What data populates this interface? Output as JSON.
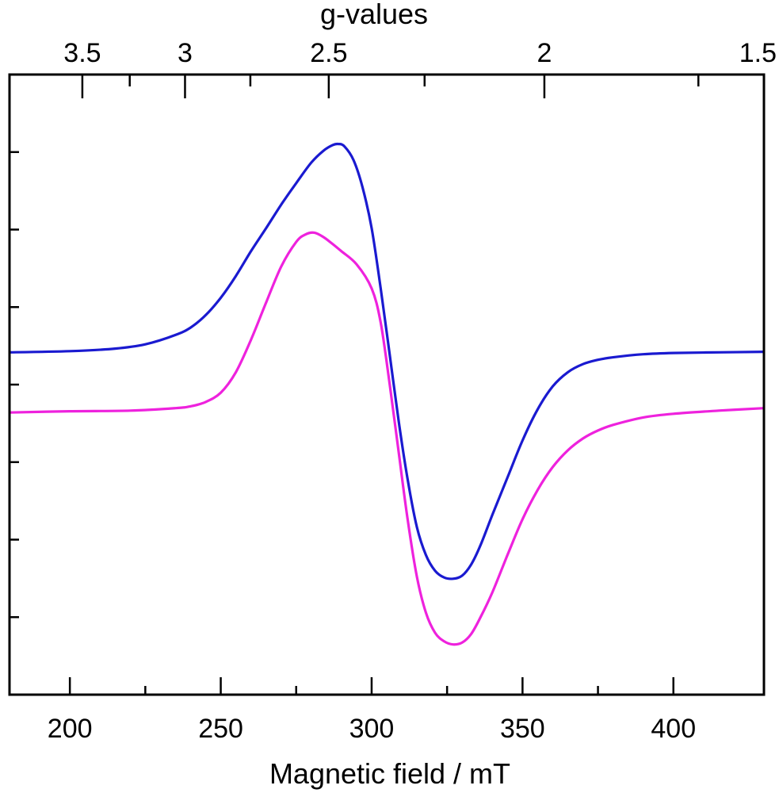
{
  "chart_data": {
    "type": "line",
    "xlabel": "Magnetic field / mT",
    "top_xlabel": "g-values",
    "xlim": [
      180,
      430
    ],
    "ylim": [
      0,
      1
    ],
    "y_ticks_labeled": false,
    "bottom_ticks": [
      "200",
      "250",
      "300",
      "350",
      "400"
    ],
    "bottom_tick_values": [
      200,
      250,
      300,
      350,
      400
    ],
    "bottom_minor_ticks": [
      225,
      275,
      325,
      375
    ],
    "top_ticks": [
      "3.5",
      "3",
      "2.5",
      "2",
      "1.5"
    ],
    "top_tick_values": [
      3.5,
      3.0,
      2.5,
      2.0,
      1.5
    ],
    "top_minor_ticks": [
      3.25,
      2.75,
      2.25,
      1.75
    ],
    "g_conversion_constant": 714.48,
    "n_y_ticks": 8,
    "series": [
      {
        "name": "blue",
        "color": "#1a1ad0",
        "x": [
          180,
          200,
          215,
          225,
          235,
          240,
          245,
          250,
          255,
          260,
          265,
          270,
          275,
          280,
          284,
          287,
          289,
          291,
          294,
          297,
          300,
          303,
          306,
          309,
          312,
          315,
          318,
          321,
          324,
          327,
          330,
          333,
          336,
          340,
          345,
          350,
          355,
          360,
          365,
          370,
          375,
          380,
          390,
          400,
          415,
          430
        ],
        "values": [
          0.552,
          0.554,
          0.558,
          0.565,
          0.58,
          0.592,
          0.612,
          0.64,
          0.675,
          0.715,
          0.752,
          0.79,
          0.825,
          0.858,
          0.877,
          0.886,
          0.888,
          0.884,
          0.862,
          0.818,
          0.752,
          0.655,
          0.548,
          0.44,
          0.345,
          0.27,
          0.225,
          0.2,
          0.189,
          0.187,
          0.192,
          0.21,
          0.24,
          0.29,
          0.35,
          0.41,
          0.46,
          0.497,
          0.52,
          0.533,
          0.54,
          0.544,
          0.549,
          0.551,
          0.552,
          0.553
        ]
      },
      {
        "name": "magenta",
        "color": "#ee22dd",
        "x": [
          180,
          200,
          220,
          235,
          240,
          245,
          250,
          255,
          260,
          265,
          270,
          275,
          278,
          281,
          284,
          287,
          290,
          295,
          300,
          303,
          306,
          309,
          312,
          315,
          318,
          321,
          324,
          327,
          330,
          333,
          336,
          340,
          345,
          350,
          355,
          360,
          365,
          370,
          375,
          380,
          390,
          400,
          415,
          430
        ],
        "values": [
          0.455,
          0.457,
          0.458,
          0.462,
          0.465,
          0.472,
          0.487,
          0.52,
          0.572,
          0.632,
          0.69,
          0.73,
          0.742,
          0.745,
          0.738,
          0.727,
          0.715,
          0.694,
          0.655,
          0.6,
          0.5,
          0.39,
          0.28,
          0.19,
          0.132,
          0.1,
          0.086,
          0.081,
          0.084,
          0.098,
          0.124,
          0.165,
          0.225,
          0.283,
          0.33,
          0.367,
          0.394,
          0.413,
          0.426,
          0.435,
          0.447,
          0.453,
          0.458,
          0.462
        ]
      }
    ]
  }
}
